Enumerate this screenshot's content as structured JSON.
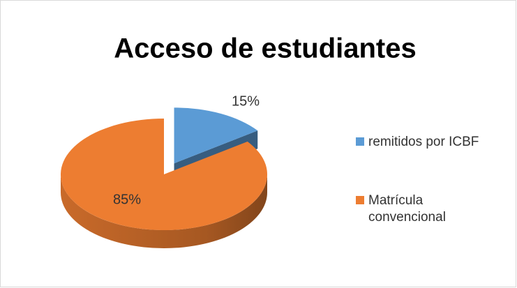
{
  "chart_data": {
    "type": "pie3d",
    "title": "Acceso de estudiantes",
    "series": [
      {
        "name": "remitidos por ICBF",
        "color": "#5b9bd5",
        "values": [
          15
        ],
        "value_labels": [
          "15%"
        ]
      },
      {
        "name": "Matrícula convencional",
        "color": "#ed7d31",
        "values": [
          85
        ],
        "value_labels": [
          "85%"
        ]
      }
    ],
    "legend": "right"
  }
}
